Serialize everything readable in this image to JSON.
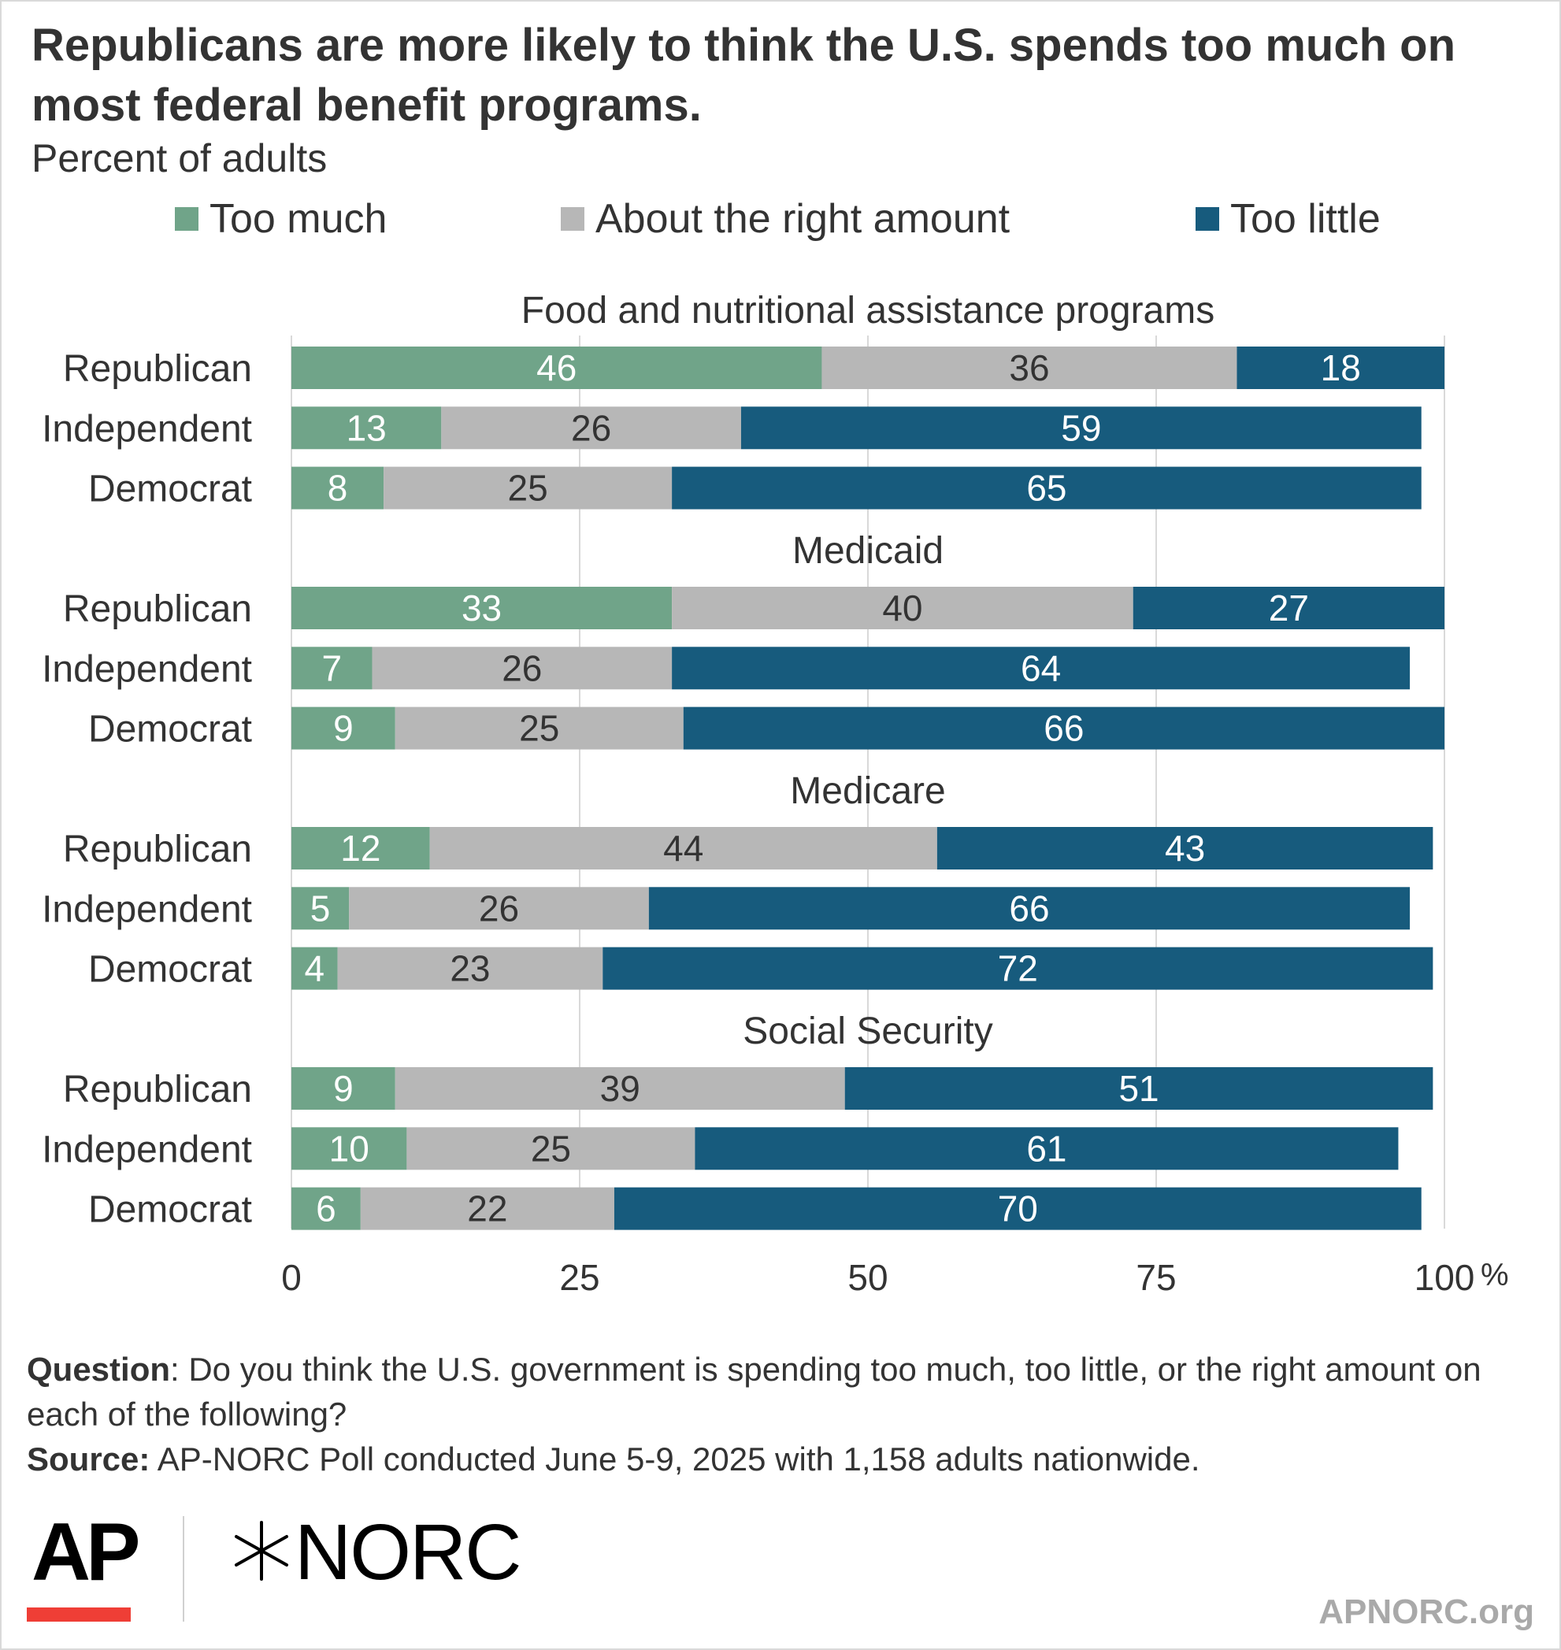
{
  "title": "Republicans are more likely to think the U.S. spends too much on most federal benefit programs.",
  "subtitle": "Percent of adults",
  "legend": {
    "too_much": "Too much",
    "about_right": "About the right amount",
    "too_little": "Too little"
  },
  "colors": {
    "too_much": "#70a489",
    "about_right": "#b7b7b7",
    "too_little": "#175b7d",
    "gridline": "#d9d9d9"
  },
  "chart_data": {
    "type": "bar",
    "orientation": "horizontal",
    "stacked": true,
    "xlim": [
      0,
      100
    ],
    "x_ticks": [
      "0",
      "25",
      "50",
      "75",
      "100"
    ],
    "x_unit": "%",
    "grid": true,
    "legend_position": "top",
    "series_names": [
      "Too much",
      "About the right amount",
      "Too little"
    ],
    "groups": [
      {
        "title": "Food and nutritional assistance programs",
        "rows": [
          {
            "label": "Republican",
            "values": [
              46,
              36,
              18
            ]
          },
          {
            "label": "Independent",
            "values": [
              13,
              26,
              59
            ]
          },
          {
            "label": "Democrat",
            "values": [
              8,
              25,
              65
            ]
          }
        ]
      },
      {
        "title": "Medicaid",
        "rows": [
          {
            "label": "Republican",
            "values": [
              33,
              40,
              27
            ]
          },
          {
            "label": "Independent",
            "values": [
              7,
              26,
              64
            ]
          },
          {
            "label": "Democrat",
            "values": [
              9,
              25,
              66
            ]
          }
        ]
      },
      {
        "title": "Medicare",
        "rows": [
          {
            "label": "Republican",
            "values": [
              12,
              44,
              43
            ]
          },
          {
            "label": "Independent",
            "values": [
              5,
              26,
              66
            ]
          },
          {
            "label": "Democrat",
            "values": [
              4,
              23,
              72
            ]
          }
        ]
      },
      {
        "title": "Social Security",
        "rows": [
          {
            "label": "Republican",
            "values": [
              9,
              39,
              51
            ]
          },
          {
            "label": "Independent",
            "values": [
              10,
              25,
              61
            ]
          },
          {
            "label": "Democrat",
            "values": [
              6,
              22,
              70
            ]
          }
        ]
      }
    ]
  },
  "footer": {
    "question_label": "Question",
    "question_text": ": Do you think the U.S. government is spending too much, too little, or the right amount on each of the following?",
    "source_label": "Source:",
    "source_text": " AP-NORC Poll conducted June 5-9, 2025 with 1,158 adults nationwide."
  },
  "logos": {
    "ap": "AP",
    "norc": "NORC"
  },
  "site": "APNORC.org"
}
